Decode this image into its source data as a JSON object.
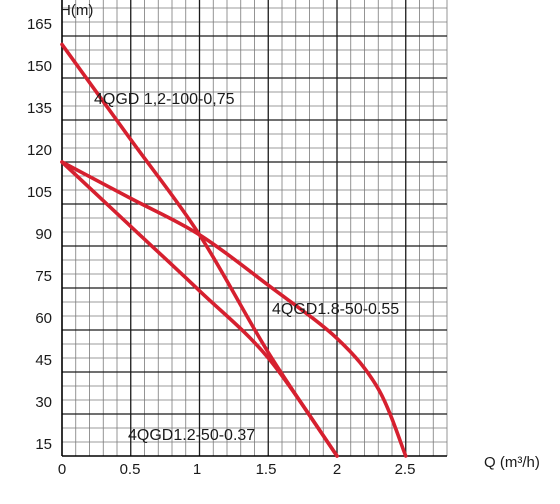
{
  "chart_data": {
    "type": "line",
    "xlabel": "Q (m³/h)",
    "ylabel": "H(m)",
    "xlim": [
      0,
      2.8
    ],
    "ylim": [
      0,
      165
    ],
    "x_ticks": [
      "0",
      "0.5",
      "1",
      "1.5",
      "2",
      "2.5"
    ],
    "y_ticks": [
      "15",
      "30",
      "45",
      "60",
      "75",
      "90",
      "105",
      "120",
      "135",
      "150",
      "165"
    ],
    "grid": true,
    "line_color": "#d6202f",
    "series": [
      {
        "name": "4QGD 1,2-100-0,75",
        "points": [
          [
            0,
            147
          ],
          [
            0.5,
            113
          ],
          [
            1,
            79
          ],
          [
            1.5,
            37
          ],
          [
            2,
            0
          ]
        ]
      },
      {
        "name": "4QGD1.8-50-0.55",
        "points": [
          [
            0,
            105
          ],
          [
            0.5,
            92
          ],
          [
            1,
            79
          ],
          [
            1.5,
            61
          ],
          [
            2,
            42
          ],
          [
            2.3,
            24
          ],
          [
            2.5,
            0
          ]
        ]
      },
      {
        "name": "4QGD1.2-50-0.37",
        "points": [
          [
            0,
            105
          ],
          [
            0.5,
            82
          ],
          [
            1,
            59
          ],
          [
            1.5,
            35
          ],
          [
            2,
            0
          ]
        ]
      }
    ]
  }
}
